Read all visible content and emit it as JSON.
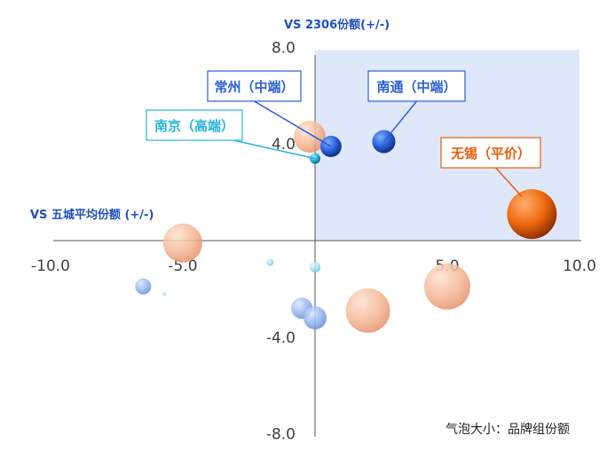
{
  "chart_data": {
    "type": "bubble",
    "x_title": "VS 五城平均份额 (+/-)",
    "y_title": "VS 2306份额(+/-)",
    "xlim": [
      -10.0,
      10.0
    ],
    "ylim": [
      -8.0,
      8.0
    ],
    "x_ticks": [
      "-10.0",
      "-5.0",
      "5.0",
      "10.0"
    ],
    "y_ticks": [
      "8.0",
      "4.0",
      "-4.0",
      "-8.0"
    ],
    "highlight_region": {
      "x": [
        0,
        10
      ],
      "y": [
        0,
        8
      ],
      "color": "#dfe8fb"
    },
    "size_note": "气泡大小：品牌组份额",
    "colors": {
      "orange": "#f07a1e",
      "blue": "#2a5fd6",
      "cyan": "#28b4d8",
      "light_orange": "#f4b592",
      "light_blue": "#8fb2ee",
      "light_cyan": "#9fdcf0"
    },
    "bubbles": [
      {
        "label": "无锡（平价）",
        "x": 8.2,
        "y": 1.1,
        "size": 28,
        "color": "orange",
        "style": "solid"
      },
      {
        "label": "南通（中端）",
        "x": 2.6,
        "y": 4.1,
        "size": 13,
        "color": "blue",
        "style": "solid"
      },
      {
        "label": "常州（中端）",
        "x": 0.6,
        "y": 3.9,
        "size": 12,
        "color": "blue",
        "style": "solid"
      },
      {
        "label": "南京（高端）",
        "x": 0.0,
        "y": 3.4,
        "size": 6,
        "color": "cyan",
        "style": "solid"
      },
      {
        "label": "",
        "x": -0.2,
        "y": 4.3,
        "size": 18,
        "color": "light_orange",
        "style": "faded"
      },
      {
        "label": "",
        "x": -5.0,
        "y": -0.1,
        "size": 22,
        "color": "light_orange",
        "style": "faded"
      },
      {
        "label": "",
        "x": 2.0,
        "y": -2.9,
        "size": 25,
        "color": "light_orange",
        "style": "faded"
      },
      {
        "label": "",
        "x": 5.0,
        "y": -1.9,
        "size": 26,
        "color": "light_orange",
        "style": "faded"
      },
      {
        "label": "",
        "x": -6.5,
        "y": -1.9,
        "size": 9,
        "color": "light_blue",
        "style": "faded"
      },
      {
        "label": "",
        "x": -0.5,
        "y": -2.8,
        "size": 12,
        "color": "light_blue",
        "style": "faded"
      },
      {
        "label": "",
        "x": 0.0,
        "y": -3.2,
        "size": 13,
        "color": "light_blue",
        "style": "faded"
      },
      {
        "label": "",
        "x": -1.7,
        "y": -0.9,
        "size": 4,
        "color": "light_cyan",
        "style": "faded"
      },
      {
        "label": "",
        "x": 0.0,
        "y": -1.1,
        "size": 6,
        "color": "light_cyan",
        "style": "faded"
      },
      {
        "label": "",
        "x": -5.7,
        "y": -2.2,
        "size": 2,
        "color": "light_cyan",
        "style": "faded"
      }
    ]
  }
}
